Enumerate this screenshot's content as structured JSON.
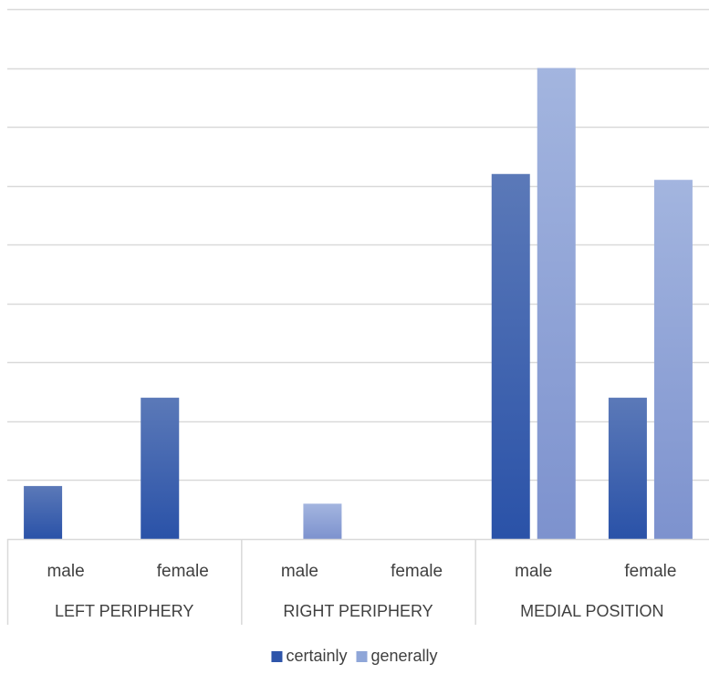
{
  "chart_data": {
    "type": "bar",
    "groups": [
      {
        "label": "LEFT PERIPHERY",
        "categories": [
          "male",
          "female"
        ]
      },
      {
        "label": "RIGHT PERIPHERY",
        "categories": [
          "male",
          "female"
        ]
      },
      {
        "label": "MEDIAL POSITION",
        "categories": [
          "male",
          "female"
        ]
      }
    ],
    "series": [
      {
        "name": "certainly",
        "color": "#2f55aa",
        "values": [
          0.9,
          2.4,
          0,
          0,
          6.2,
          2.4
        ]
      },
      {
        "name": "generally",
        "color": "#8fa6d8",
        "values": [
          0,
          0,
          0.6,
          0,
          8.0,
          6.1
        ]
      }
    ],
    "ylim": [
      0,
      9
    ],
    "y_step": 1,
    "grid": true,
    "y_tick_labels_shown": false,
    "legend_position": "bottom"
  }
}
